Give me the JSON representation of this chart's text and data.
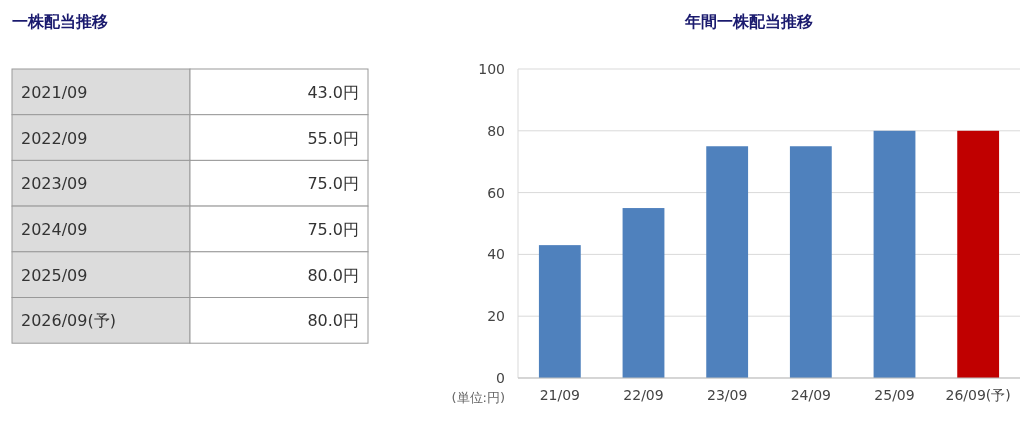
{
  "chart_data": [
    {
      "type": "other",
      "title": "一株配当推移",
      "categories": [
        "2021/09",
        "2022/09",
        "2023/09",
        "2024/09",
        "2025/09",
        "2026/09(予)"
      ],
      "values": [
        43,
        55,
        75,
        75,
        80,
        80
      ],
      "value_labels": [
        "43.0円",
        "55.0円",
        "75.0円",
        "75.0円",
        "80.0円",
        "80.0円"
      ]
    },
    {
      "type": "bar",
      "title": "年間一株配当推移",
      "ylabel": "(単位:円)",
      "categories": [
        "21/09",
        "22/09",
        "23/09",
        "24/09",
        "25/09",
        "26/09(予)"
      ],
      "values": [
        43,
        55,
        75,
        75,
        80,
        80
      ],
      "colors": [
        "#4f81bd",
        "#4f81bd",
        "#4f81bd",
        "#4f81bd",
        "#4f81bd",
        "#c00000"
      ],
      "ylim": [
        0,
        100
      ],
      "yticks": [
        0,
        20,
        40,
        60,
        80,
        100
      ],
      "grid": "y"
    }
  ]
}
